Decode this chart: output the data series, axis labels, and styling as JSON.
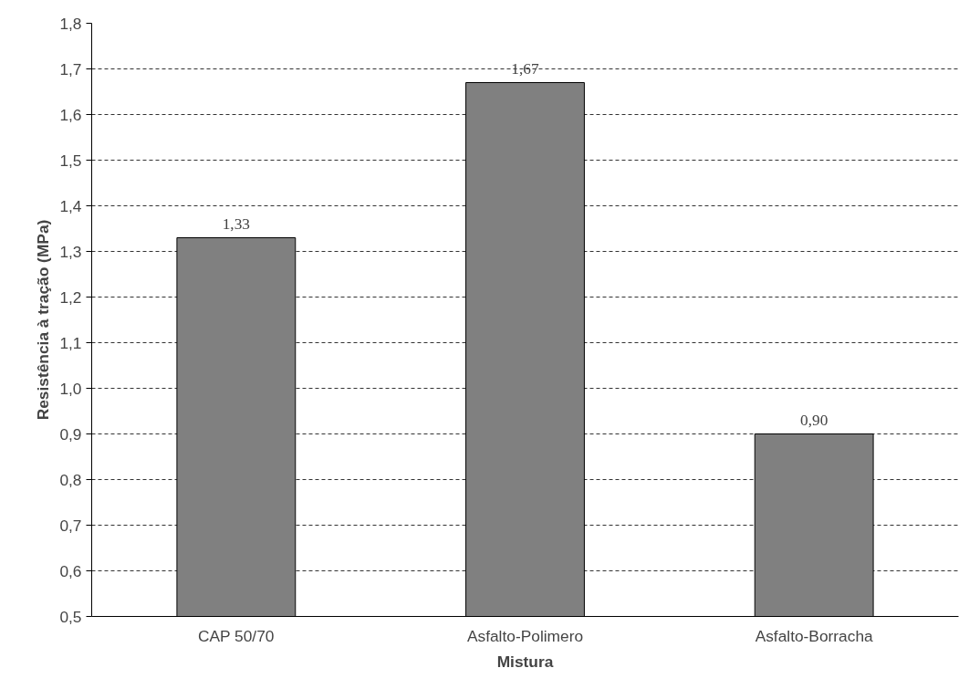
{
  "chart_data": {
    "type": "bar",
    "xlabel": "Mistura",
    "ylabel": "Resistência à tração (MPa)",
    "categories": [
      "CAP 50/70",
      "Asfalto-Polimero",
      "Asfalto-Borracha"
    ],
    "values": [
      1.33,
      1.67,
      0.9
    ],
    "color": "#808080",
    "value_labels": [
      "1,33",
      "1,67",
      "0,90"
    ],
    "ylim": [
      0.5,
      1.8
    ],
    "yticks": [
      {
        "value": 0.5,
        "label": "0,5"
      },
      {
        "value": 0.6,
        "label": "0,6"
      },
      {
        "value": 0.7,
        "label": "0,7"
      },
      {
        "value": 0.8,
        "label": "0,8"
      },
      {
        "value": 0.9,
        "label": "0,9"
      },
      {
        "value": 1.0,
        "label": "1,0"
      },
      {
        "value": 1.1,
        "label": "1,1"
      },
      {
        "value": 1.2,
        "label": "1,2"
      },
      {
        "value": 1.3,
        "label": "1,3"
      },
      {
        "value": 1.4,
        "label": "1,4"
      },
      {
        "value": 1.5,
        "label": "1,5"
      },
      {
        "value": 1.6,
        "label": "1,6"
      },
      {
        "value": 1.7,
        "label": "1,7"
      },
      {
        "value": 1.8,
        "label": "1,8"
      }
    ],
    "grid": "y",
    "line_style": "dashed"
  }
}
